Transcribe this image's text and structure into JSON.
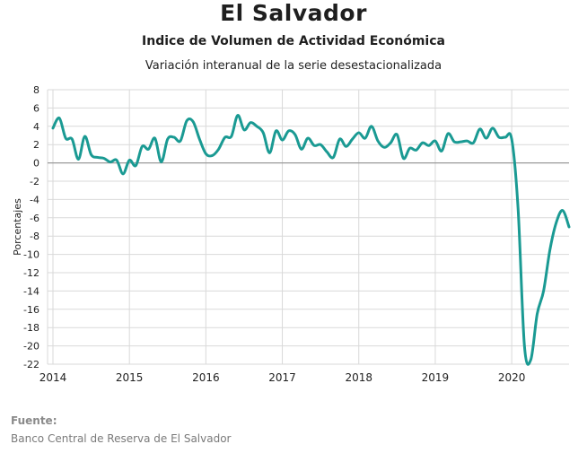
{
  "title": "El Salvador",
  "subtitle": "Indice de Volumen de  Actividad Económica",
  "subtitle2": "Variación interanual de la serie desestacionalizada",
  "source_heading": "Fuente:",
  "source_text": "Banco Central de Reserva de El Salvador",
  "colors": {
    "line": "#1a9a93",
    "grid": "#d9d9d9",
    "zero": "#9a9a9a"
  },
  "chart_data": {
    "type": "line",
    "title": "El Salvador",
    "subtitle": "Indice de Volumen de  Actividad Económica",
    "ylabel": "Porcentajes",
    "xlabel": "",
    "ylim": [
      -22,
      8
    ],
    "yticks": [
      8,
      6,
      4,
      2,
      0,
      -2,
      -4,
      -6,
      -8,
      -10,
      -12,
      -14,
      -16,
      -18,
      -20,
      -22
    ],
    "xticks": [
      "2014",
      "2015",
      "2016",
      "2017",
      "2018",
      "2019",
      "2020"
    ],
    "x_start": "2014-01",
    "x_end": "2020-10",
    "grid": true,
    "series": [
      {
        "values": [
          3.8,
          4.9,
          2.7,
          2.6,
          0.4,
          2.9,
          0.9,
          0.6,
          0.5,
          0.1,
          0.3,
          -1.2,
          0.3,
          -0.3,
          1.8,
          1.5,
          2.7,
          0.1,
          2.6,
          2.8,
          2.4,
          4.6,
          4.5,
          2.6,
          1.0,
          0.8,
          1.5,
          2.8,
          2.9,
          5.2,
          3.6,
          4.4,
          4.0,
          3.3,
          1.1,
          3.5,
          2.5,
          3.5,
          3.1,
          1.5,
          2.7,
          1.9,
          2.0,
          1.2,
          0.6,
          2.6,
          1.8,
          2.6,
          3.3,
          2.7,
          4.0,
          2.4,
          1.7,
          2.2,
          3.1,
          0.5,
          1.6,
          1.4,
          2.2,
          1.9,
          2.4,
          1.3,
          3.2,
          2.3,
          2.3,
          2.4,
          2.2,
          3.7,
          2.7,
          3.8,
          2.8,
          2.8,
          2.6,
          -5.0,
          -20.0,
          -21.5,
          -16.5,
          -14.0,
          -9.5,
          -6.5,
          -5.2,
          -7.0
        ]
      }
    ]
  }
}
